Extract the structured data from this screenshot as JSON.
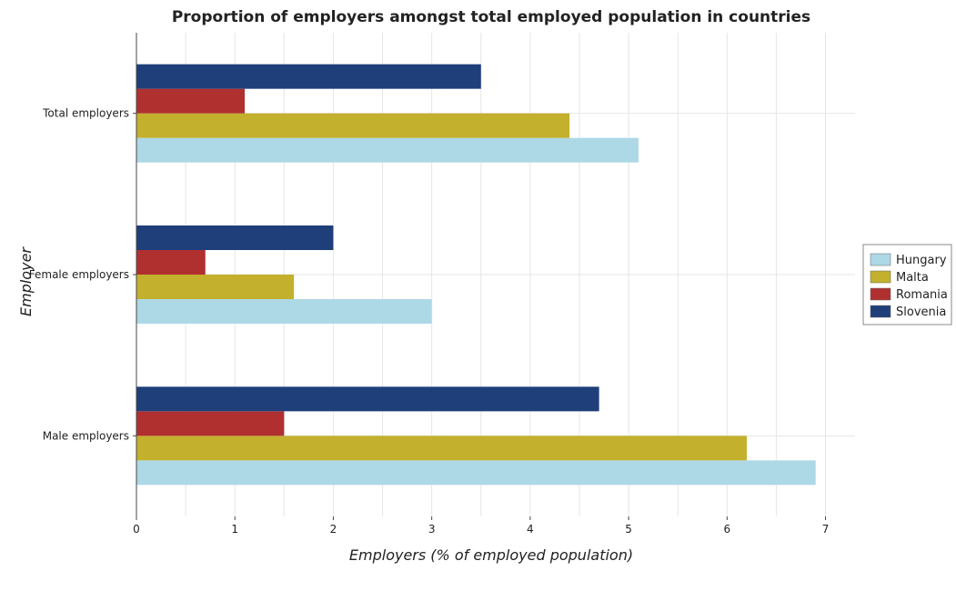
{
  "chart_data": {
    "type": "bar",
    "orientation": "horizontal",
    "title": "Proportion of employers amongst total employed population in countries",
    "xlabel": "Employers (% of employed population)",
    "ylabel": "Employer",
    "categories": [
      "Total employers",
      "Female employers",
      "Male employers"
    ],
    "series": [
      {
        "name": "Hungary",
        "color": "#add8e6",
        "values": [
          5.1,
          3.0,
          6.9
        ]
      },
      {
        "name": "Malta",
        "color": "#c3b02d",
        "values": [
          4.4,
          1.6,
          6.2
        ]
      },
      {
        "name": "Romania",
        "color": "#b03030",
        "values": [
          1.1,
          0.7,
          1.5
        ]
      },
      {
        "name": "Slovenia",
        "color": "#1f3f7a",
        "values": [
          3.5,
          2.0,
          4.7
        ]
      }
    ],
    "xlim": [
      0,
      7.3
    ],
    "xticks": [
      "0",
      "1",
      "2",
      "3",
      "4",
      "5",
      "6",
      "7"
    ],
    "grid": true,
    "legend_position": "right"
  }
}
